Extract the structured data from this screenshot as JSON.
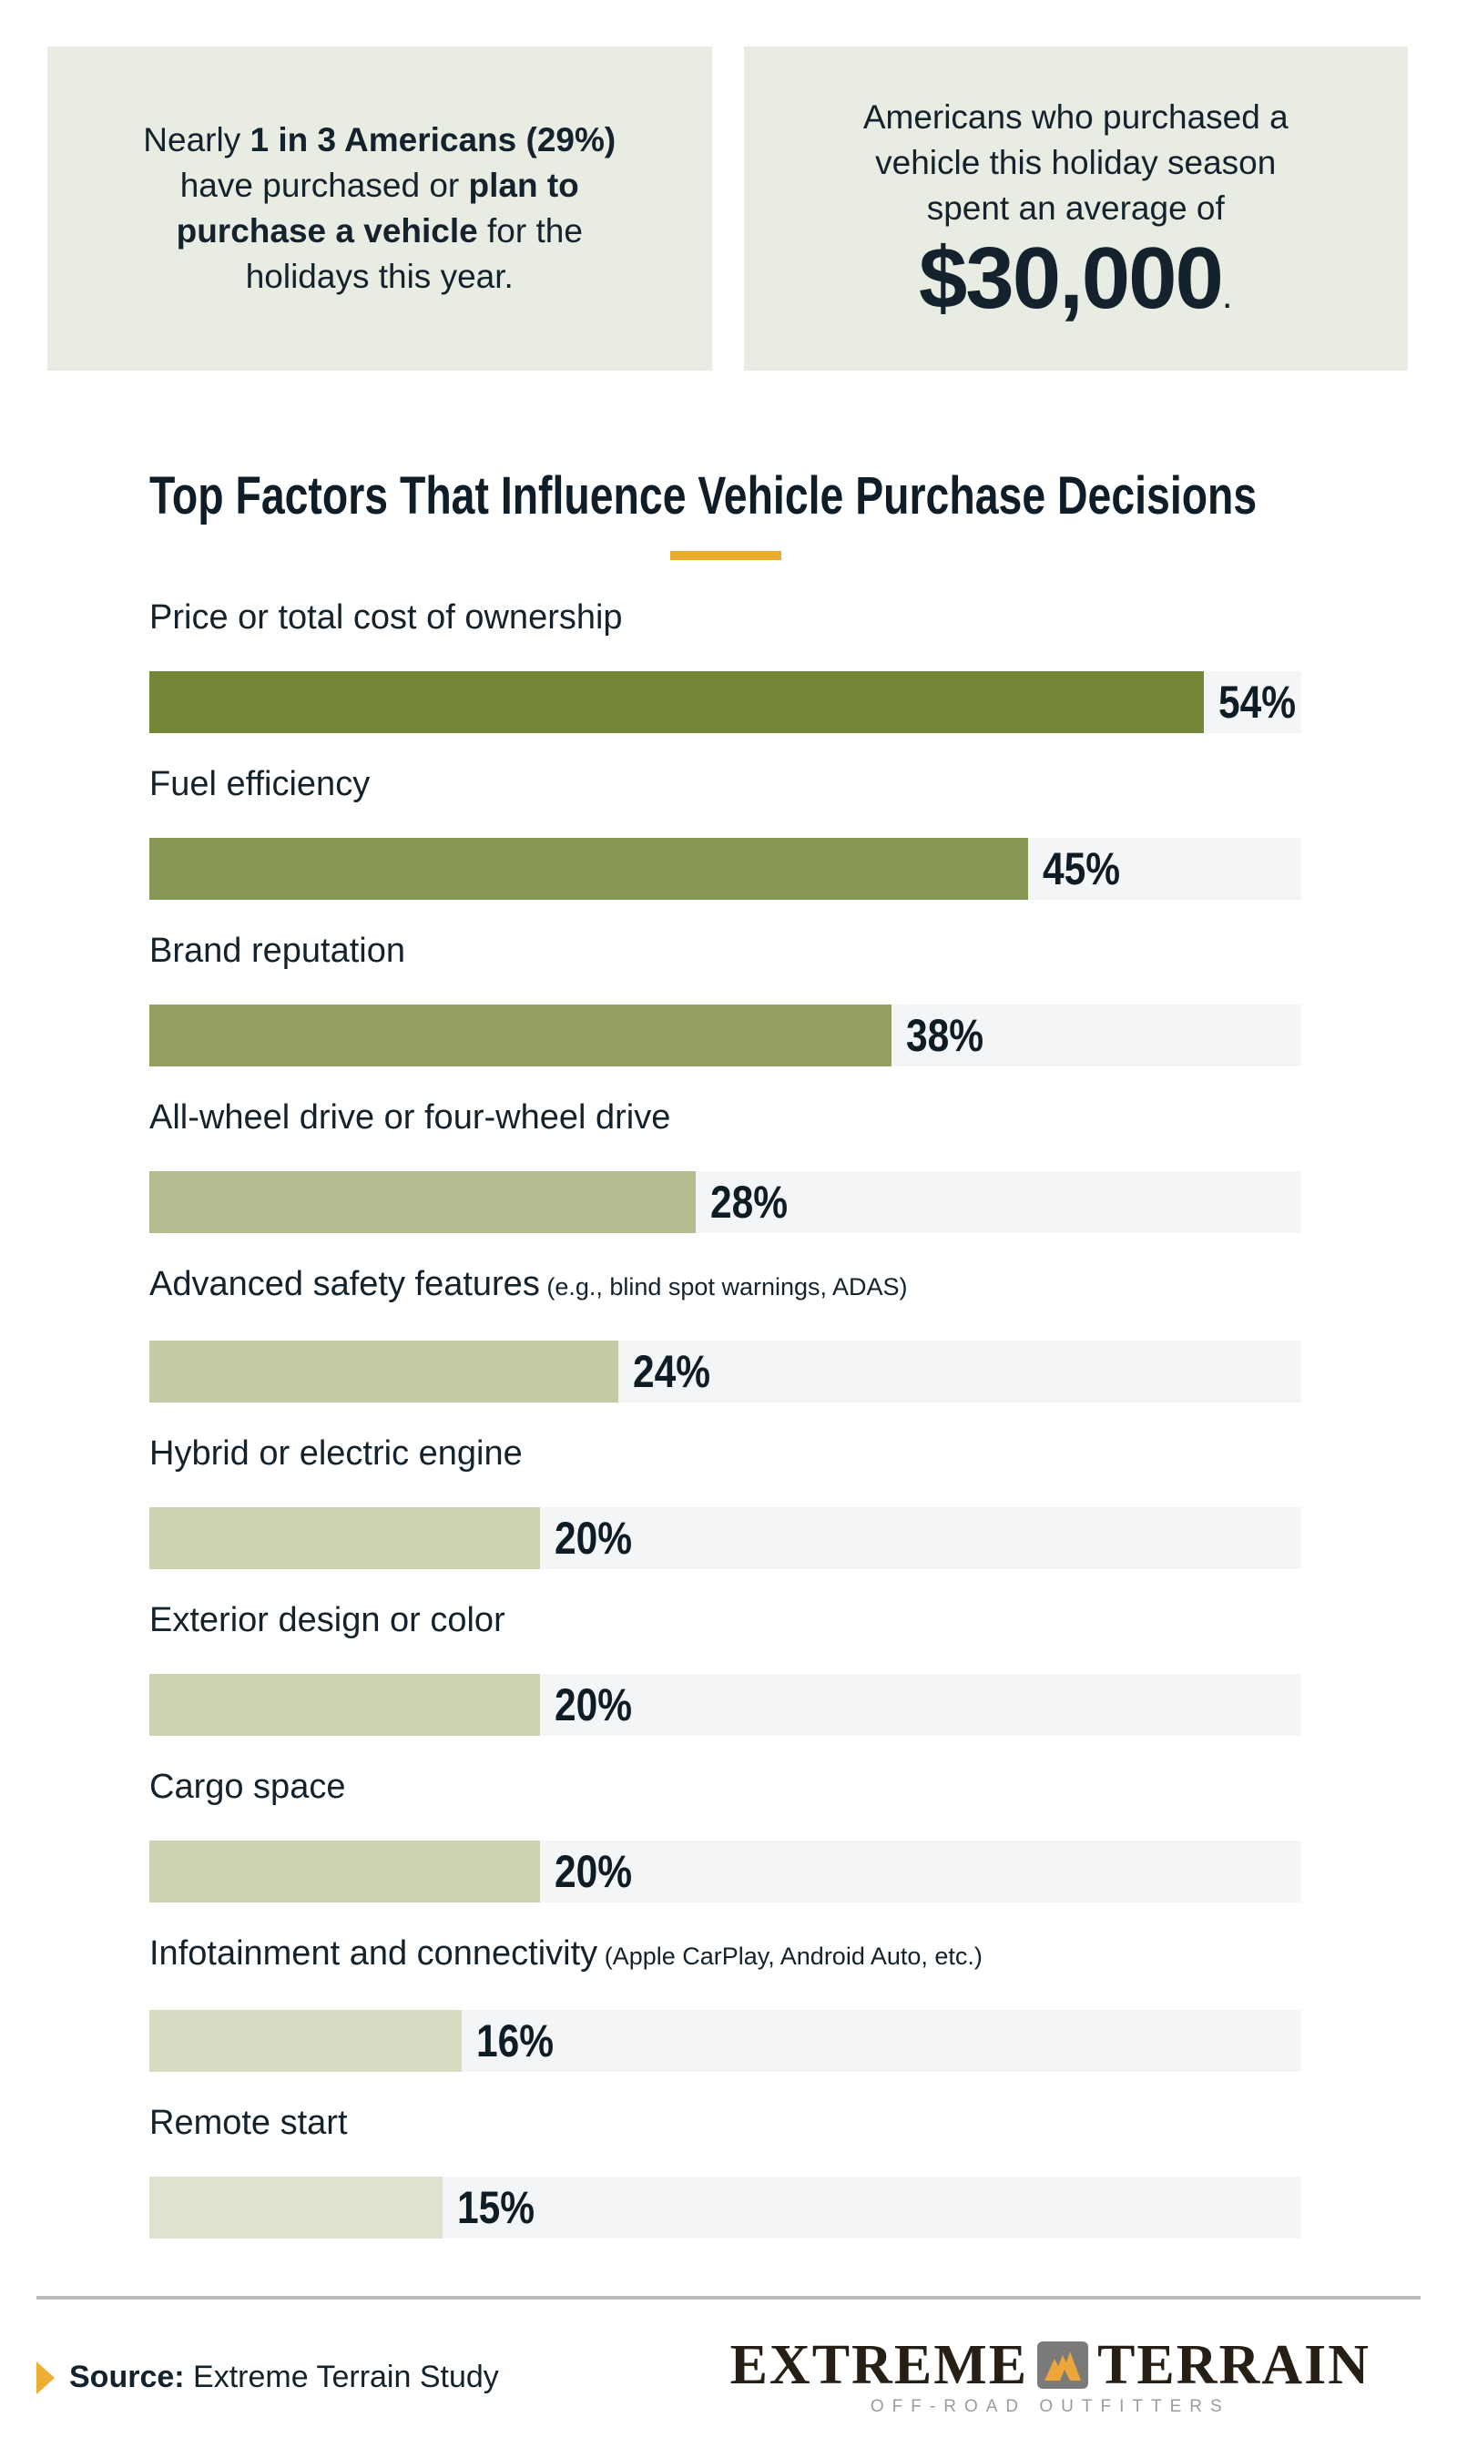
{
  "stat_boxes": {
    "left": {
      "segments": [
        {
          "t": "Nearly ",
          "b": 0
        },
        {
          "t": "1 in 3 Americans (29%)",
          "b": 1
        },
        {
          "br": 1
        },
        {
          "t": "have purchased or ",
          "b": 0
        },
        {
          "t": "plan to",
          "b": 1
        },
        {
          "br": 1
        },
        {
          "t": "purchase a vehicle",
          "b": 1
        },
        {
          "t": " for the",
          "b": 0
        },
        {
          "br": 1
        },
        {
          "t": "holidays this year.",
          "b": 0
        }
      ]
    },
    "right": {
      "intro_lines": [
        "Americans who purchased a",
        "vehicle this holiday season",
        "spent an average of"
      ],
      "amount": "$30,000",
      "period": "."
    }
  },
  "chart_data": {
    "type": "bar",
    "orientation": "horizontal",
    "title": "Top Factors That Influence Vehicle Purchase Decisions",
    "unit": "%",
    "xlim": [
      0,
      59
    ],
    "grid": false,
    "legend": "none",
    "categories": [
      "Price or total cost of ownership",
      "Fuel efficiency",
      "Brand reputation",
      "All-wheel drive or four-wheel drive",
      "Advanced safety features",
      "Hybrid or electric engine",
      "Exterior design or color",
      "Cargo space",
      "Infotainment and connectivity",
      "Remote start"
    ],
    "sublabels": [
      "",
      "",
      "",
      "",
      "(e.g., blind spot warnings, ADAS)",
      "",
      "",
      "",
      "(Apple CarPlay, Android Auto, etc.)",
      ""
    ],
    "values": [
      54,
      45,
      38,
      28,
      24,
      20,
      20,
      20,
      16,
      15
    ],
    "value_labels": [
      "54%",
      "45%",
      "38%",
      "28%",
      "24%",
      "20%",
      "20%",
      "20%",
      "16%",
      "15%"
    ],
    "bar_colors": [
      "#748739",
      "#879754",
      "#93a062",
      "#b5bc90",
      "#c4caa6",
      "#cdd2b0",
      "#cdd2b0",
      "#cdd2b0",
      "#d8dbc2",
      "#dfe2d0"
    ],
    "track_color": "#f4f5f7"
  },
  "footer": {
    "source_label": "Source:",
    "source_text": "Extreme Terrain Study",
    "logo": {
      "word1": "EXTREME",
      "word2": "TERRAIN",
      "tagline": "OFF-ROAD OUTFITTERS"
    }
  },
  "colors": {
    "accent_gold": "#e9ab2e",
    "stat_box_bg": "#e9ece2",
    "text_dark": "#13222c",
    "divider_gray": "#bababa",
    "logo_black": "#271e16",
    "logo_badge_gray": "#7b7a79",
    "logo_mountain_gold": "#eca63b",
    "logo_tagline_gray": "#9b9b9b"
  }
}
